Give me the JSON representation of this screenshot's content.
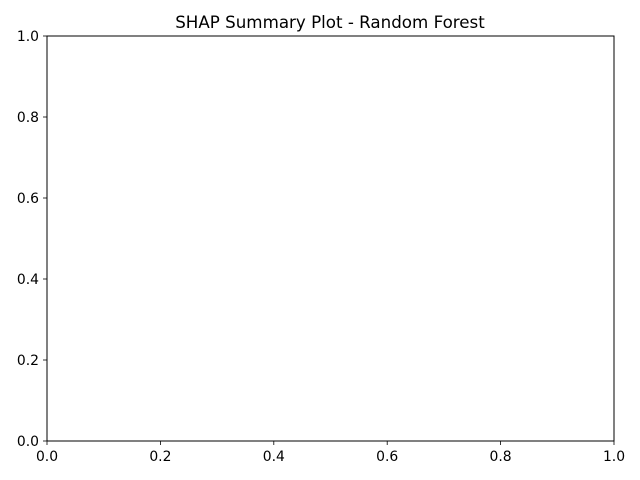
{
  "chart_data": {
    "type": "scatter",
    "title": "SHAP Summary Plot - Random Forest",
    "xlabel": "",
    "ylabel": "",
    "xlim": [
      0,
      1
    ],
    "ylim": [
      0,
      1
    ],
    "x_ticks": [
      {
        "value": 0.0,
        "label": "0.0"
      },
      {
        "value": 0.2,
        "label": "0.2"
      },
      {
        "value": 0.4,
        "label": "0.4"
      },
      {
        "value": 0.6,
        "label": "0.6"
      },
      {
        "value": 0.8,
        "label": "0.8"
      },
      {
        "value": 1.0,
        "label": "1.0"
      }
    ],
    "y_ticks": [
      {
        "value": 0.0,
        "label": "0.0"
      },
      {
        "value": 0.2,
        "label": "0.2"
      },
      {
        "value": 0.4,
        "label": "0.4"
      },
      {
        "value": 0.6,
        "label": "0.6"
      },
      {
        "value": 0.8,
        "label": "0.8"
      },
      {
        "value": 1.0,
        "label": "1.0"
      }
    ],
    "series": [],
    "grid": false,
    "colors": {
      "axis": "#000000",
      "background": "#ffffff"
    }
  }
}
